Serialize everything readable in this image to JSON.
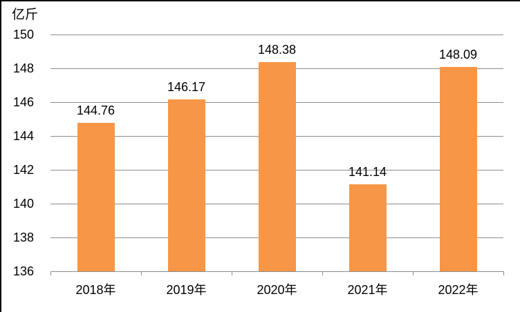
{
  "chart_data": {
    "type": "bar",
    "title": "",
    "unit_label": "亿斤",
    "categories": [
      "2018年",
      "2019年",
      "2020年",
      "2021年",
      "2022年"
    ],
    "values": [
      144.76,
      146.17,
      148.38,
      141.14,
      148.09
    ],
    "value_labels": [
      "144.76",
      "146.17",
      "148.38",
      "141.14",
      "148.09"
    ],
    "ylim": [
      136,
      150
    ],
    "ytick_step": 2,
    "yticks": [
      "150",
      "148",
      "146",
      "144",
      "142",
      "140",
      "138",
      "136"
    ],
    "grid": "horizontal",
    "legend": "none",
    "bar_color": "#F79646",
    "gridline_color": "#8C8C8C",
    "axis_color": "#8C8C8C",
    "text_color": "#000000"
  }
}
